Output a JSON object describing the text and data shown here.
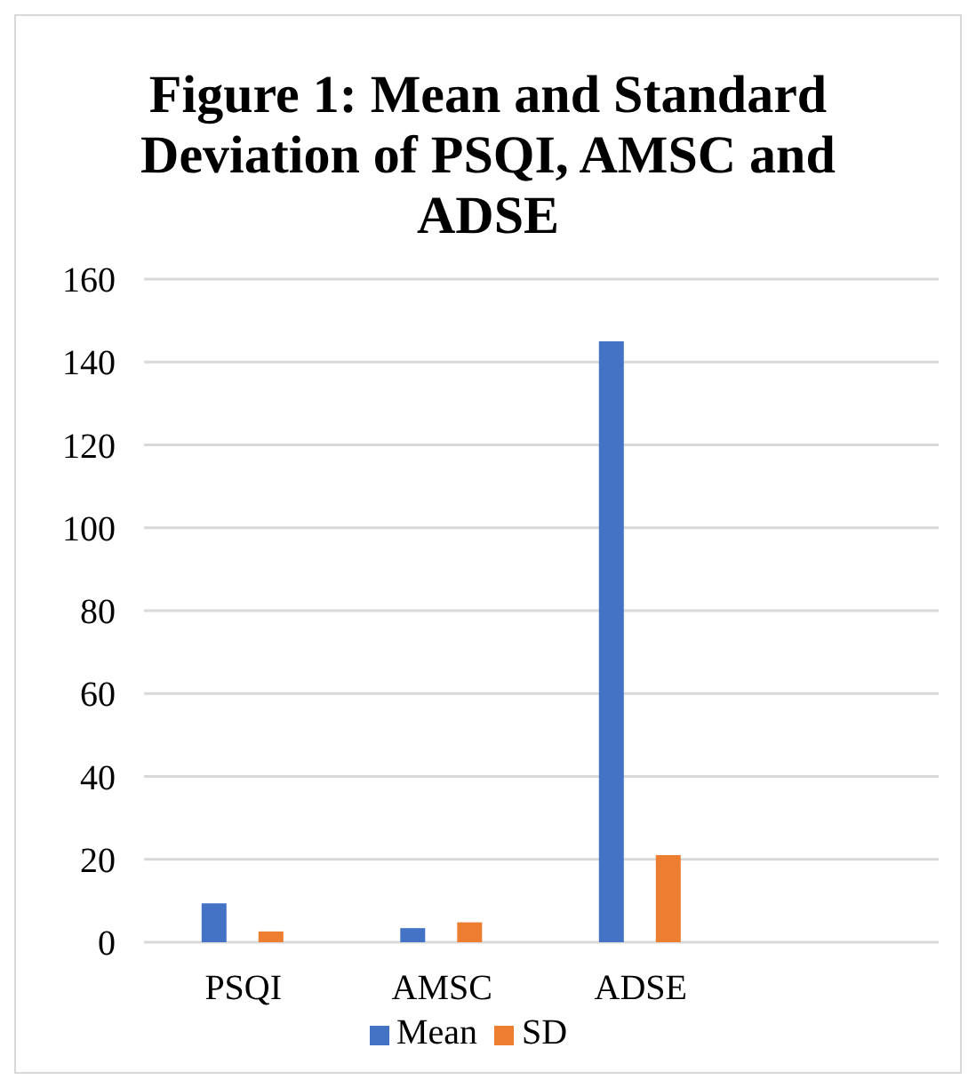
{
  "chart_data": {
    "type": "bar",
    "title": "Figure 1: Mean and Standard Deviation of PSQI, AMSC and ADSE",
    "categories": [
      "PSQI",
      "AMSC",
      "ADSE",
      null
    ],
    "series": [
      {
        "name": "Mean",
        "color": "#4472c4",
        "values": [
          9.4,
          3.4,
          145,
          null
        ]
      },
      {
        "name": "SD",
        "color": "#ed7d31",
        "values": [
          2.6,
          4.8,
          21,
          null
        ]
      }
    ],
    "ylim": [
      0,
      160
    ],
    "yticks": [
      0,
      20,
      40,
      60,
      80,
      100,
      120,
      140,
      160
    ],
    "grid": "y",
    "legend": "bottom"
  }
}
